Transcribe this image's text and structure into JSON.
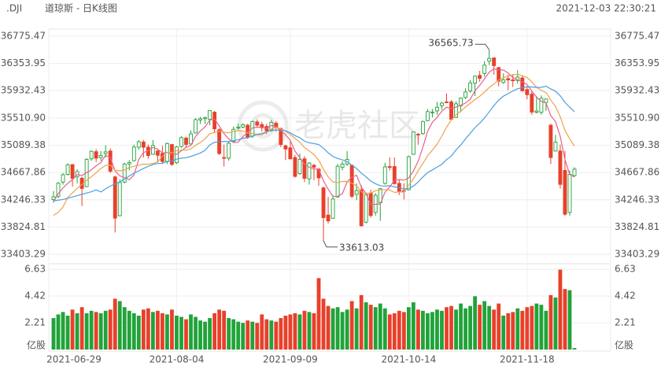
{
  "chart_data": {
    "type": "candlestick",
    "symbol": ".DJI",
    "title": "道琼斯 - 日K线图",
    "timestamp": "2021-12-03 22:30:21",
    "watermark": "老虎社区",
    "volume_unit": "亿股",
    "up_color": "#21a33a",
    "down_color": "#e8402a",
    "ylim": [
      33403.29,
      36775.47
    ],
    "yticks": [
      36775.47,
      36353.95,
      35932.43,
      {
        "value": 35510.9,
        "label": "35510.90"
      },
      35089.38,
      34667.86,
      34246.33,
      33824.81,
      33403.29
    ],
    "vlim": [
      0,
      6.96
    ],
    "vticks": [
      6.63,
      4.42,
      2.21
    ],
    "grid": true,
    "categories": [
      "2021-06-29",
      null,
      null,
      null,
      null,
      null,
      null,
      null,
      null,
      null,
      null,
      null,
      null,
      null,
      null,
      null,
      null,
      null,
      null,
      null,
      null,
      null,
      null,
      null,
      null,
      null,
      "2021-08-04",
      null,
      null,
      null,
      null,
      null,
      null,
      null,
      null,
      null,
      null,
      null,
      null,
      null,
      null,
      null,
      null,
      null,
      null,
      null,
      null,
      null,
      null,
      null,
      "2021-09-09",
      null,
      null,
      null,
      null,
      null,
      null,
      null,
      null,
      null,
      null,
      null,
      null,
      null,
      null,
      null,
      null,
      null,
      null,
      null,
      null,
      null,
      null,
      null,
      null,
      "2021-10-14",
      null,
      null,
      null,
      null,
      null,
      null,
      null,
      null,
      null,
      null,
      null,
      null,
      null,
      null,
      null,
      null,
      null,
      null,
      null,
      null,
      null,
      null,
      null,
      null,
      "2021-11-18",
      null,
      null,
      null,
      null,
      null,
      null,
      null,
      null,
      null,
      null
    ],
    "candles": [
      [
        34250,
        34380,
        34200,
        34292,
        2.6
      ],
      [
        34300,
        34520,
        34270,
        34502,
        2.9
      ],
      [
        34520,
        34660,
        34480,
        34633,
        3.1
      ],
      [
        34640,
        34810,
        34620,
        34786,
        2.8
      ],
      [
        34790,
        34800,
        34450,
        34577,
        3.3
      ],
      [
        34600,
        34720,
        34500,
        34681,
        3.0
      ],
      [
        34580,
        34600,
        34150,
        34421,
        3.5
      ],
      [
        34450,
        34890,
        34440,
        34870,
        3.0
      ],
      [
        34880,
        35010,
        34850,
        34996,
        3.2
      ],
      [
        34990,
        35030,
        34830,
        34889,
        3.1
      ],
      [
        34900,
        35000,
        34850,
        34933,
        3.0
      ],
      [
        34960,
        35090,
        34900,
        34987,
        3.2
      ],
      [
        35000,
        35040,
        34660,
        34687,
        3.3
      ],
      [
        34600,
        34620,
        33740,
        33962,
        4.2
      ],
      [
        34000,
        34560,
        33990,
        34512,
        4.0
      ],
      [
        34520,
        34820,
        34500,
        34798,
        3.5
      ],
      [
        34800,
        34860,
        34700,
        34823,
        3.2
      ],
      [
        34850,
        35100,
        34840,
        35061,
        3.0
      ],
      [
        35060,
        35170,
        35020,
        35144,
        2.8
      ],
      [
        35140,
        35170,
        34900,
        35058,
        3.3
      ],
      [
        35060,
        35100,
        34880,
        34930,
        3.4
      ],
      [
        34950,
        35170,
        34940,
        35085,
        3.1
      ],
      [
        35000,
        35020,
        34820,
        34935,
        3.2
      ],
      [
        34960,
        35080,
        34800,
        34838,
        3.0
      ],
      [
        34840,
        35130,
        34800,
        35116,
        2.9
      ],
      [
        35100,
        35110,
        34770,
        34793,
        3.3
      ],
      [
        34820,
        35080,
        34800,
        35064,
        2.8
      ],
      [
        35070,
        35230,
        35050,
        35208,
        2.7
      ],
      [
        35200,
        35220,
        35050,
        35102,
        2.5
      ],
      [
        35110,
        35320,
        35100,
        35265,
        2.9
      ],
      [
        35280,
        35510,
        35270,
        35485,
        2.7
      ],
      [
        35480,
        35530,
        35420,
        35500,
        2.4
      ],
      [
        35500,
        35530,
        35420,
        35515,
        2.3
      ],
      [
        35490,
        35630,
        35400,
        35625,
        2.6
      ],
      [
        35600,
        35620,
        35280,
        35343,
        3.0
      ],
      [
        35330,
        35350,
        34940,
        34961,
        3.3
      ],
      [
        34900,
        35100,
        34760,
        34894,
        3.2
      ],
      [
        34890,
        35150,
        34850,
        35120,
        2.6
      ],
      [
        35150,
        35380,
        35140,
        35336,
        2.5
      ],
      [
        35360,
        35420,
        35330,
        35367,
        2.3
      ],
      [
        35370,
        35430,
        35350,
        35406,
        2.2
      ],
      [
        35400,
        35420,
        35190,
        35214,
        2.4
      ],
      [
        35230,
        35470,
        35200,
        35456,
        2.3
      ],
      [
        35450,
        35490,
        35360,
        35400,
        2.2
      ],
      [
        35410,
        35450,
        35300,
        35361,
        2.9
      ],
      [
        35380,
        35420,
        35260,
        35313,
        2.5
      ],
      [
        35330,
        35480,
        35300,
        35444,
        2.4
      ],
      [
        35430,
        35460,
        35300,
        35369,
        2.3
      ],
      [
        35350,
        35360,
        35060,
        35100,
        2.6
      ],
      [
        35080,
        35100,
        34860,
        35031,
        2.8
      ],
      [
        35050,
        35150,
        34870,
        34879,
        2.9
      ],
      [
        34900,
        34940,
        34590,
        34608,
        3.0
      ],
      [
        34650,
        34960,
        34630,
        34870,
        2.9
      ],
      [
        34880,
        34920,
        34520,
        34578,
        3.2
      ],
      [
        34570,
        34830,
        34480,
        34814,
        3.1
      ],
      [
        34780,
        34800,
        34550,
        34751,
        3.0
      ],
      [
        34720,
        34740,
        34460,
        34584,
        5.9
      ],
      [
        34430,
        34450,
        33613.03,
        33970,
        4.2
      ],
      [
        34010,
        34290,
        33880,
        33919,
        3.6
      ],
      [
        33960,
        34320,
        33950,
        34258,
        3.4
      ],
      [
        34290,
        34800,
        34280,
        34765,
        3.5
      ],
      [
        34750,
        34840,
        34700,
        34798,
        3.1
      ],
      [
        34800,
        35000,
        34770,
        34870,
        3.3
      ],
      [
        34780,
        34790,
        34270,
        34300,
        4.0
      ],
      [
        34330,
        34500,
        34240,
        34390,
        3.4
      ],
      [
        34400,
        34470,
        33830,
        33844,
        4.5
      ],
      [
        33900,
        34340,
        33880,
        34326,
        3.9
      ],
      [
        34350,
        34400,
        33970,
        34003,
        3.7
      ],
      [
        34050,
        34350,
        34000,
        34315,
        3.5
      ],
      [
        34200,
        34430,
        33920,
        34417,
        3.8
      ],
      [
        34500,
        34820,
        34480,
        34755,
        3.4
      ],
      [
        34760,
        34900,
        34700,
        34746,
        2.9
      ],
      [
        34760,
        34900,
        34480,
        34496,
        3.0
      ],
      [
        34500,
        34560,
        34320,
        34378,
        3.2
      ],
      [
        34390,
        34500,
        34250,
        34377,
        3.1
      ],
      [
        34400,
        34930,
        34390,
        34912,
        3.5
      ],
      [
        34950,
        35300,
        34940,
        35295,
        3.9
      ],
      [
        35260,
        35280,
        35100,
        35259,
        3.3
      ],
      [
        35270,
        35470,
        35250,
        35457,
        3.2
      ],
      [
        35470,
        35650,
        35460,
        35609,
        3.0
      ],
      [
        35600,
        35650,
        35520,
        35603,
        3.1
      ],
      [
        35620,
        35760,
        35560,
        35677,
        3.3
      ],
      [
        35700,
        35760,
        35640,
        35741,
        3.2
      ],
      [
        35760,
        35890,
        35740,
        35756,
        3.5
      ],
      [
        35760,
        35790,
        35480,
        35491,
        3.6
      ],
      [
        35520,
        35770,
        35510,
        35730,
        3.3
      ],
      [
        35700,
        35830,
        35600,
        35820,
        3.8
      ],
      [
        35830,
        35970,
        35800,
        35913,
        3.4
      ],
      [
        35930,
        36100,
        35900,
        36053,
        3.6
      ],
      [
        36050,
        36170,
        35850,
        36158,
        4.4
      ],
      [
        36170,
        36240,
        36070,
        36124,
        3.7
      ],
      [
        36200,
        36390,
        36150,
        36328,
        4.0
      ],
      [
        36390,
        36565.73,
        36330,
        36432,
        3.6
      ],
      [
        36440,
        36450,
        36180,
        36320,
        3.3
      ],
      [
        36290,
        36300,
        36000,
        36080,
        3.8
      ],
      [
        36060,
        36200,
        36040,
        36100,
        2.8
      ],
      [
        36120,
        36180,
        35940,
        36100,
        3.0
      ],
      [
        36100,
        36190,
        35990,
        36087,
        3.1
      ],
      [
        36090,
        36250,
        36040,
        36143,
        3.4
      ],
      [
        36130,
        36160,
        35920,
        35931,
        3.2
      ],
      [
        35950,
        36000,
        35800,
        35871,
        3.5
      ],
      [
        35880,
        35930,
        35560,
        35602,
        3.6
      ],
      [
        35600,
        35850,
        35580,
        35619,
        3.8
      ],
      [
        35600,
        35860,
        35560,
        35814,
        3.7
      ],
      [
        35750,
        35810,
        35620,
        35804,
        3.2
      ],
      [
        35400,
        35420,
        34800,
        34899,
        4.5
      ],
      [
        35000,
        35250,
        34990,
        35136,
        4.3
      ],
      [
        35000,
        35100,
        34420,
        34484,
        6.6
      ],
      [
        34700,
        35000,
        34000,
        34022,
        5.0
      ],
      [
        34050,
        34700,
        34000,
        34640,
        4.9
      ],
      [
        34620,
        34750,
        34600,
        34720,
        0.12
      ]
    ],
    "ma": [
      {
        "color": "#e8618c",
        "values": [
          34216,
          34341,
          34429,
          34499,
          34558,
          34636,
          34620,
          34667,
          34709,
          34771,
          34822,
          34935,
          34898,
          34692,
          34616,
          34589,
          34556,
          34631,
          34868,
          34977,
          35003,
          35056,
          35030,
          34969,
          34981,
          34953,
          34949,
          35004,
          35057,
          35086,
          35225,
          35312,
          35373,
          35478,
          35494,
          35389,
          35268,
          35189,
          35131,
          35136,
          35225,
          35289,
          35356,
          35369,
          35367,
          35349,
          35395,
          35377,
          35317,
          35251,
          35165,
          34997,
          34898,
          34793,
          34750,
          34724,
          34719,
          34539,
          34408,
          34296,
          34299,
          34342,
          34522,
          34598,
          34625,
          34440,
          34346,
          34173,
          34176,
          34181,
          34363,
          34447,
          34546,
          34558,
          34550,
          34582,
          34692,
          34844,
          35060,
          35306,
          35445,
          35521,
          35617,
          35677,
          35654,
          35679,
          35708,
          35742,
          35801,
          35935,
          36014,
          36115,
          36219,
          36272,
          36257,
          36252,
          36206,
          36137,
          36102,
          36072,
          36026,
          35927,
          35833,
          35767,
          35742,
          35548,
          35454,
          35227,
          34869,
          34636,
          34600
        ]
      },
      {
        "color": "#f0a24a",
        "values": [
          34005,
          34052,
          34133,
          34282,
          34352,
          34426,
          34481,
          34548,
          34604,
          34665,
          34729,
          34778,
          34783,
          34701,
          34694,
          34706,
          34746,
          34765,
          34780,
          34797,
          34796,
          34806,
          34831,
          34919,
          34979,
          34978,
          35003,
          35017,
          35013,
          35034,
          35089,
          35131,
          35189,
          35268,
          35290,
          35307,
          35290,
          35281,
          35305,
          35315,
          35307,
          35279,
          35273,
          35250,
          35252,
          35287,
          35342,
          35367,
          35343,
          35309,
          35257,
          35196,
          35138,
          35055,
          35001,
          34945,
          34858,
          34719,
          34601,
          34523,
          34512,
          34531,
          34531,
          34503,
          34461,
          34370,
          34344,
          34348,
          34387,
          34403,
          34402,
          34397,
          34360,
          34367,
          34366,
          34473,
          34570,
          34695,
          34809,
          34928,
          35014,
          35107,
          35231,
          35369,
          35480,
          35562,
          35615,
          35680,
          35739,
          35795,
          35847,
          35912,
          35981,
          36037,
          36096,
          36133,
          36161,
          36178,
          36187,
          36165,
          36139,
          36067,
          35985,
          35935,
          35907,
          35787,
          35691,
          35530,
          35318,
          35189,
          35074
        ]
      },
      {
        "color": "#4a9fe0",
        "values": [
          34230,
          34240,
          34250,
          34270,
          34290,
          34310,
          34330,
          34350,
          34370,
          34400,
          34367,
          34415,
          34458,
          34492,
          34523,
          34566,
          34614,
          34657,
          34692,
          34731,
          34763,
          34792,
          34807,
          34810,
          34837,
          34842,
          34875,
          34891,
          34897,
          34916,
          34943,
          34969,
          35010,
          35094,
          35135,
          35143,
          35147,
          35149,
          35159,
          35175,
          35198,
          35205,
          35231,
          35259,
          35271,
          35297,
          35316,
          35324,
          35324,
          35312,
          35282,
          35238,
          35206,
          35153,
          35127,
          35116,
          35100,
          35043,
          34972,
          34916,
          34885,
          34864,
          34835,
          34779,
          34731,
          34658,
          34601,
          34534,
          34494,
          34463,
          34457,
          34464,
          34446,
          34435,
          34414,
          34422,
          34457,
          34522,
          34598,
          34666,
          34708,
          34752,
          34796,
          34868,
          34923,
          35018,
          35093,
          35188,
          35274,
          35362,
          35431,
          35510,
          35606,
          35703,
          35788,
          35848,
          35888,
          35929,
          35963,
          35980,
          35993,
          35990,
          35983,
          35986,
          36002,
          35960,
          35926,
          35854,
          35753,
          35677,
          35607
        ]
      }
    ]
  }
}
